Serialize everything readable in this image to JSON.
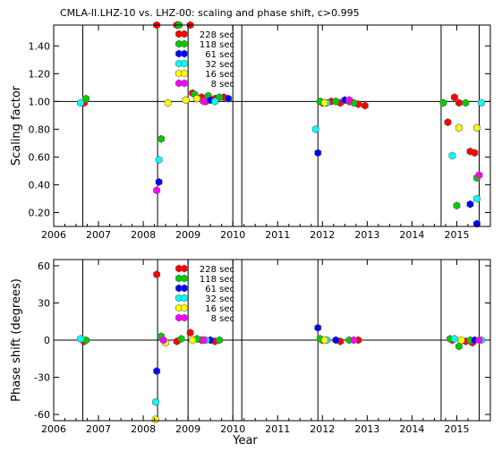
{
  "chart_data": [
    {
      "type": "scatter",
      "title": "CMLA-II.LHZ-10 vs. LHZ-00: scaling and phase shift, c>0.995",
      "xlabel": "",
      "ylabel": "Scaling factor",
      "xlim": [
        2006,
        2015.75
      ],
      "ylim": [
        0.1,
        1.55
      ],
      "xticks": [
        "2006",
        "2007",
        "2008",
        "2009",
        "2010",
        "2011",
        "2012",
        "2013",
        "2014",
        "2015"
      ],
      "yticks": [
        "0.20",
        "0.40",
        "0.60",
        "0.80",
        "1.00",
        "1.20",
        "1.40"
      ],
      "reference_line": 1.0,
      "legend_position": "top-center",
      "series": [
        {
          "name": "228 sec",
          "color": "#ff0000",
          "points": [
            [
              2006.68,
              0.99
            ],
            [
              2008.3,
              1.55
            ],
            [
              2008.75,
              1.55
            ],
            [
              2009.05,
              1.55
            ],
            [
              2009.1,
              1.06
            ],
            [
              2009.3,
              1.03
            ],
            [
              2009.4,
              1.0
            ],
            [
              2009.6,
              1.02
            ],
            [
              2009.8,
              1.03
            ],
            [
              2012.0,
              0.99
            ],
            [
              2012.2,
              1.0
            ],
            [
              2012.4,
              0.99
            ],
            [
              2012.6,
              1.0
            ],
            [
              2012.8,
              0.98
            ],
            [
              2012.95,
              0.97
            ],
            [
              2014.8,
              0.85
            ],
            [
              2014.95,
              1.03
            ],
            [
              2015.05,
              0.99
            ],
            [
              2015.3,
              0.64
            ],
            [
              2015.4,
              0.63
            ]
          ]
        },
        {
          "name": "118 sec",
          "color": "#00cc00",
          "points": [
            [
              2006.72,
              1.02
            ],
            [
              2008.4,
              0.73
            ],
            [
              2008.8,
              1.55
            ],
            [
              2009.15,
              1.05
            ],
            [
              2009.45,
              1.04
            ],
            [
              2009.7,
              1.03
            ],
            [
              2011.95,
              1.0
            ],
            [
              2012.3,
              1.0
            ],
            [
              2012.7,
              0.99
            ],
            [
              2014.7,
              0.99
            ],
            [
              2015.0,
              0.25
            ],
            [
              2015.2,
              0.99
            ],
            [
              2015.45,
              0.45
            ]
          ]
        },
        {
          "name": "61 sec",
          "color": "#0000ff",
          "points": [
            [
              2008.35,
              0.42
            ],
            [
              2009.5,
              1.01
            ],
            [
              2009.9,
              1.02
            ],
            [
              2011.9,
              0.63
            ],
            [
              2012.5,
              1.01
            ],
            [
              2015.3,
              0.26
            ],
            [
              2015.45,
              0.12
            ]
          ]
        },
        {
          "name": "32 sec",
          "color": "#00ffff",
          "points": [
            [
              2006.6,
              0.99
            ],
            [
              2008.35,
              0.58
            ],
            [
              2009.6,
              1.0
            ],
            [
              2011.85,
              0.8
            ],
            [
              2012.1,
              0.99
            ],
            [
              2014.9,
              0.61
            ],
            [
              2015.45,
              0.3
            ],
            [
              2015.55,
              0.99
            ]
          ]
        },
        {
          "name": "16 sec",
          "color": "#ffff00",
          "points": [
            [
              2008.55,
              0.99
            ],
            [
              2008.95,
              1.01
            ],
            [
              2009.2,
              1.02
            ],
            [
              2012.05,
              0.99
            ],
            [
              2015.05,
              0.81
            ],
            [
              2015.45,
              0.81
            ]
          ]
        },
        {
          "name": "8 sec",
          "color": "#ff00ff",
          "points": [
            [
              2008.3,
              0.36
            ],
            [
              2009.35,
              1.0
            ],
            [
              2012.6,
              1.01
            ],
            [
              2015.5,
              0.47
            ]
          ]
        }
      ]
    },
    {
      "type": "scatter",
      "xlabel": "Year",
      "ylabel": "Phase shift (degrees)",
      "xlim": [
        2006,
        2015.75
      ],
      "ylim": [
        -65,
        65
      ],
      "xticks": [
        "2006",
        "2007",
        "2008",
        "2009",
        "2010",
        "2011",
        "2012",
        "2013",
        "2014",
        "2015"
      ],
      "yticks": [
        "-60",
        "-30",
        "0",
        "30",
        "60"
      ],
      "reference_line": 0,
      "legend_position": "top-center",
      "series": [
        {
          "name": "228 sec",
          "color": "#ff0000",
          "points": [
            [
              2006.68,
              -1
            ],
            [
              2008.3,
              53
            ],
            [
              2008.75,
              -1
            ],
            [
              2009.05,
              6
            ],
            [
              2009.3,
              0
            ],
            [
              2009.6,
              -1
            ],
            [
              2012.0,
              0
            ],
            [
              2012.4,
              -1
            ],
            [
              2012.8,
              0
            ],
            [
              2014.9,
              0
            ],
            [
              2015.2,
              -1
            ],
            [
              2015.35,
              -2
            ]
          ]
        },
        {
          "name": "118 sec",
          "color": "#00cc00",
          "points": [
            [
              2006.72,
              0
            ],
            [
              2008.4,
              3
            ],
            [
              2008.85,
              1
            ],
            [
              2009.2,
              1
            ],
            [
              2009.7,
              0
            ],
            [
              2011.95,
              1
            ],
            [
              2012.6,
              0
            ],
            [
              2014.85,
              1
            ],
            [
              2015.05,
              -5
            ],
            [
              2015.3,
              0
            ]
          ]
        },
        {
          "name": "61 sec",
          "color": "#0000ff",
          "points": [
            [
              2008.3,
              -25
            ],
            [
              2009.5,
              0
            ],
            [
              2011.9,
              10
            ],
            [
              2012.3,
              0
            ],
            [
              2015.4,
              0
            ]
          ]
        },
        {
          "name": "32 sec",
          "color": "#00ffff",
          "points": [
            [
              2006.6,
              1
            ],
            [
              2008.28,
              -50
            ],
            [
              2009.4,
              0
            ],
            [
              2012.1,
              0
            ],
            [
              2014.95,
              1
            ],
            [
              2015.55,
              0
            ]
          ]
        },
        {
          "name": "16 sec",
          "color": "#ffff00",
          "points": [
            [
              2008.27,
              -64
            ],
            [
              2008.5,
              -2
            ],
            [
              2009.1,
              0
            ],
            [
              2012.05,
              0
            ],
            [
              2015.1,
              0
            ]
          ]
        },
        {
          "name": "8 sec",
          "color": "#ff00ff",
          "points": [
            [
              2008.45,
              0
            ],
            [
              2009.35,
              0
            ],
            [
              2012.7,
              0
            ],
            [
              2015.5,
              0
            ]
          ]
        }
      ]
    }
  ],
  "vertical_event_lines": [
    2006.65,
    2008.32,
    2009.0,
    2010.0,
    2010.2,
    2011.9,
    2014.65,
    2015.5
  ]
}
